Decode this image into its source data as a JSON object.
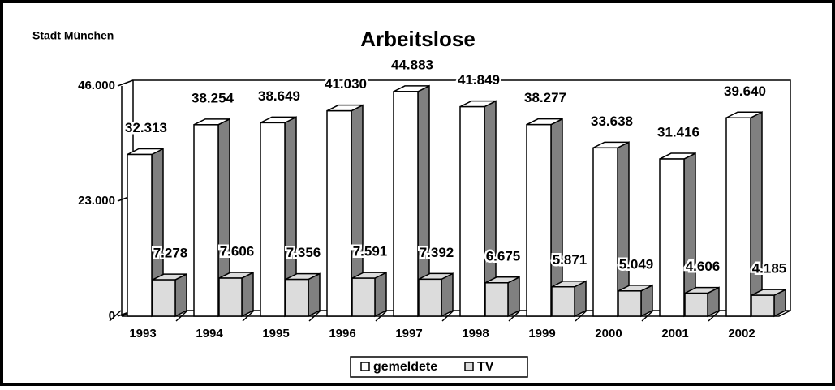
{
  "chart_data": {
    "type": "bar3d",
    "title": "Arbeitslose",
    "subtitle": "Stadt München",
    "categories": [
      "1993",
      "1994",
      "1995",
      "1996",
      "1997",
      "1998",
      "1999",
      "2000",
      "2001",
      "2002"
    ],
    "series": [
      {
        "name": "gemeldete",
        "color": "#ffffff",
        "values": [
          32313,
          38254,
          38649,
          41030,
          44883,
          41849,
          38277,
          33638,
          31416,
          39640
        ],
        "value_labels": [
          "32.313",
          "38.254",
          "38.649",
          "41.030",
          "44.883",
          "41.849",
          "38.277",
          "33.638",
          "31.416",
          "39.640"
        ]
      },
      {
        "name": "TV",
        "color": "#dcdcdc",
        "values": [
          7278,
          7606,
          7356,
          7591,
          7392,
          6675,
          5871,
          5049,
          4606,
          4185
        ],
        "value_labels": [
          "7.278",
          "7.606",
          "7.356",
          "7.591",
          "7.392",
          "6.675",
          "5.871",
          "5.049",
          "4.606",
          "4.185"
        ]
      }
    ],
    "ylim": [
      0,
      46000
    ],
    "yticks": [
      0,
      {
        "value": 23000,
        "label": "23.000"
      },
      {
        "value": 46000,
        "label": "46.000"
      }
    ],
    "legend": "bottom"
  }
}
